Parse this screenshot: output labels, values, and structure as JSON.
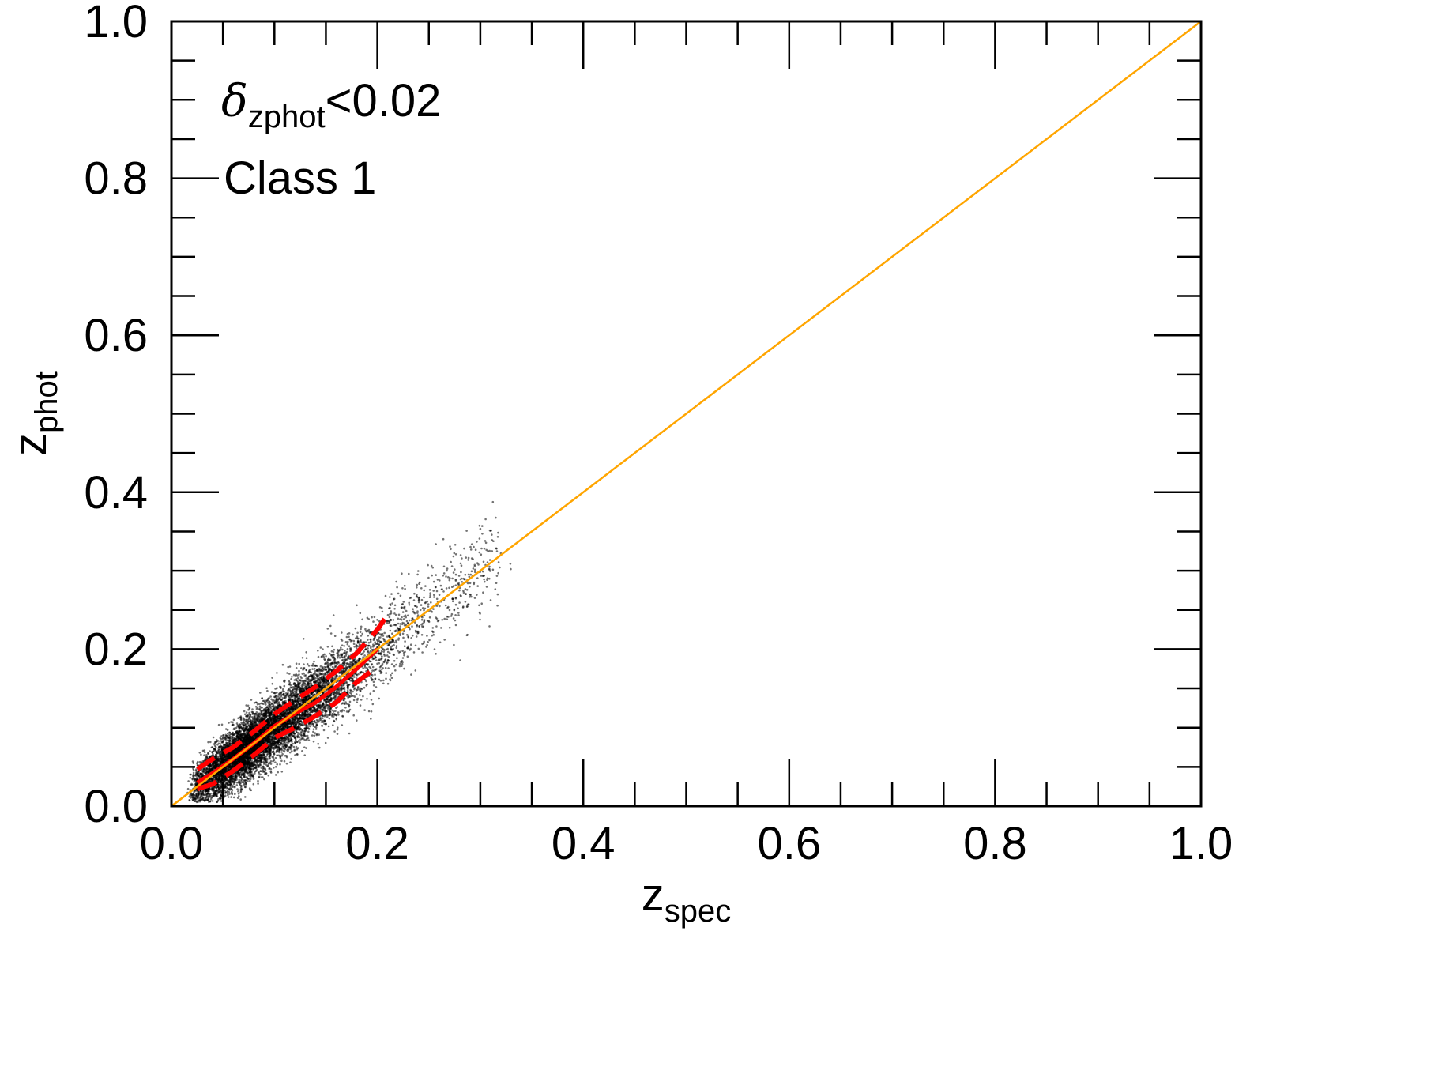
{
  "chart_data": {
    "type": "scatter",
    "title": "",
    "xlabel": {
      "base": "z",
      "subscript": "spec"
    },
    "ylabel": {
      "base": "z",
      "subscript": "phot"
    },
    "xlim": [
      0.0,
      1.0
    ],
    "ylim": [
      0.0,
      1.0
    ],
    "x_major_ticks": [
      "0.0",
      "0.2",
      "0.4",
      "0.6",
      "0.8",
      "1.0"
    ],
    "y_major_ticks": [
      "0.0",
      "0.2",
      "0.4",
      "0.6",
      "0.8",
      "1.0"
    ],
    "minor_tick_step": 0.05,
    "grid": false,
    "annotations": {
      "condition_symbol": "δ",
      "condition_subscript": "zphot",
      "condition_value": "<0.02",
      "class_label": "Class 1"
    },
    "one_to_one_line": {
      "x": [
        0.0,
        1.0
      ],
      "y": [
        0.0,
        1.0
      ],
      "color": "#FFA500"
    },
    "median_line": {
      "color": "#FF0000",
      "x": [
        0.025,
        0.04,
        0.06,
        0.08,
        0.1,
        0.12,
        0.14,
        0.16,
        0.18,
        0.2
      ],
      "y": [
        0.03,
        0.042,
        0.06,
        0.08,
        0.102,
        0.118,
        0.132,
        0.152,
        0.175,
        0.2
      ]
    },
    "upper_percentile_line": {
      "color": "#FF0000",
      "style": "dashed",
      "x": [
        0.025,
        0.04,
        0.06,
        0.08,
        0.1,
        0.12,
        0.14,
        0.16,
        0.18,
        0.2,
        0.21
      ],
      "y": [
        0.047,
        0.06,
        0.075,
        0.095,
        0.117,
        0.135,
        0.152,
        0.172,
        0.195,
        0.225,
        0.244
      ]
    },
    "lower_percentile_line": {
      "color": "#FF0000",
      "style": "dashed",
      "x": [
        0.025,
        0.04,
        0.06,
        0.08,
        0.1,
        0.12,
        0.14,
        0.16,
        0.18,
        0.2
      ],
      "y": [
        0.022,
        0.028,
        0.045,
        0.065,
        0.087,
        0.1,
        0.115,
        0.132,
        0.158,
        0.178
      ]
    },
    "scatter_cloud": {
      "color": "#000000",
      "x_range": [
        0.01,
        0.36
      ],
      "center_relation": "z_phot ≈ z_spec",
      "spread": 0.025
    }
  }
}
